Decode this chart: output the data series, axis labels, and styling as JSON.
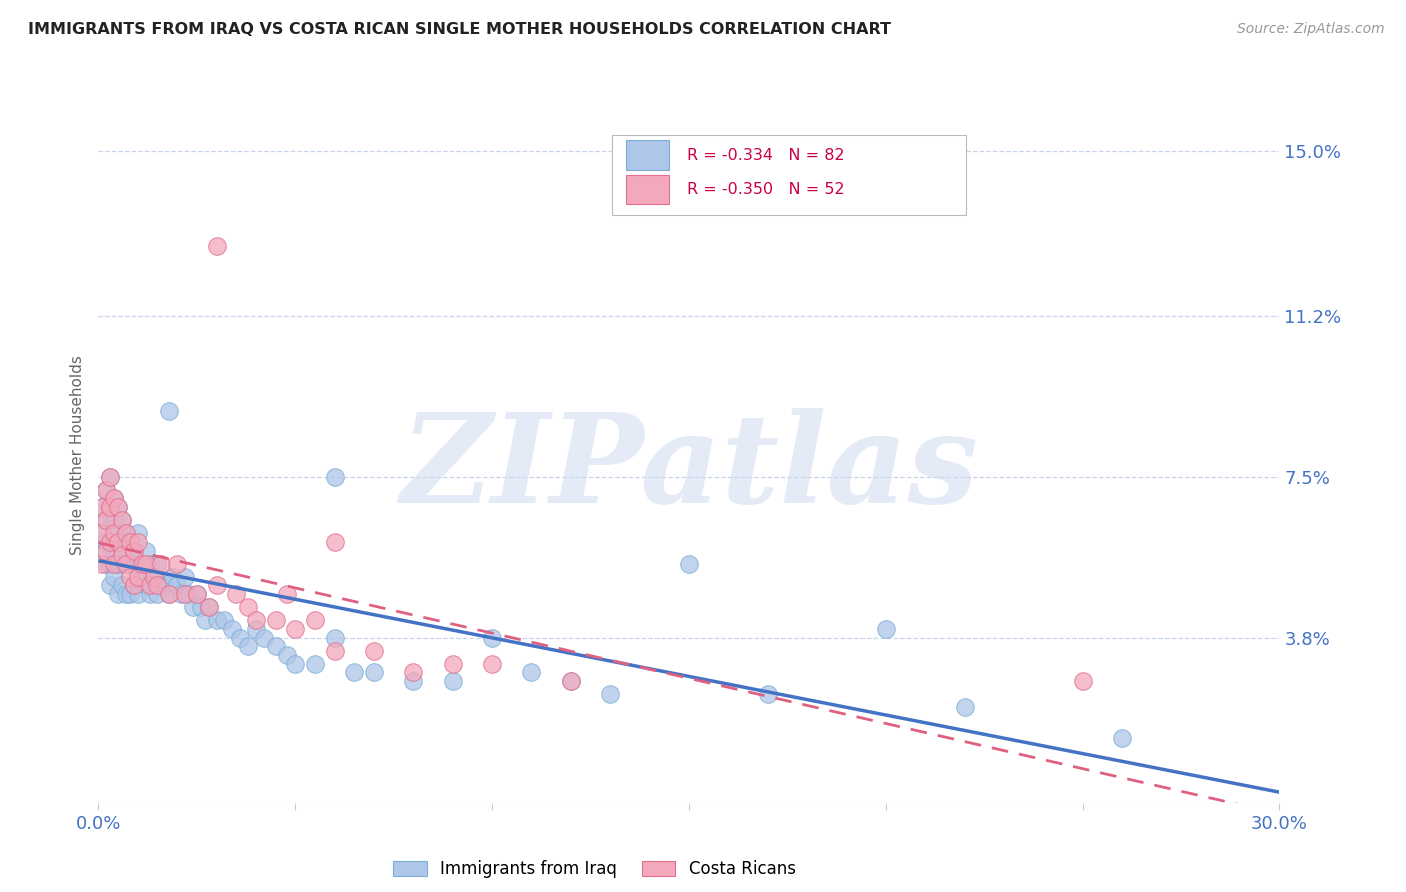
{
  "title": "IMMIGRANTS FROM IRAQ VS COSTA RICAN SINGLE MOTHER HOUSEHOLDS CORRELATION CHART",
  "source": "Source: ZipAtlas.com",
  "ylabel": "Single Mother Households",
  "xlim": [
    0.0,
    0.3
  ],
  "ylim": [
    0.0,
    0.16
  ],
  "ytick_vals": [
    0.038,
    0.075,
    0.112,
    0.15
  ],
  "ytick_labels": [
    "3.8%",
    "7.5%",
    "11.2%",
    "15.0%"
  ],
  "xtick_vals": [
    0.0,
    0.05,
    0.1,
    0.15,
    0.2,
    0.25,
    0.3
  ],
  "xtick_labels": [
    "0.0%",
    "",
    "",
    "",
    "",
    "",
    "30.0%"
  ],
  "legend_iraq_r": "R = -0.334",
  "legend_iraq_n": "N = 82",
  "legend_cr_r": "R = -0.350",
  "legend_cr_n": "N = 52",
  "color_iraq_fill": "#aec6e8",
  "color_iraq_edge": "#7badd4",
  "color_cr_fill": "#f4a8bb",
  "color_cr_edge": "#e07090",
  "color_iraq_line": "#4472c4",
  "color_cr_line": "#e06080",
  "color_axis_labels": "#4472c4",
  "watermark_color": "#ccd8ee",
  "grid_color": "#c8d4e8",
  "iraq_x": [
    0.001,
    0.001,
    0.001,
    0.002,
    0.002,
    0.002,
    0.002,
    0.003,
    0.003,
    0.003,
    0.003,
    0.003,
    0.004,
    0.004,
    0.004,
    0.004,
    0.005,
    0.005,
    0.005,
    0.005,
    0.006,
    0.006,
    0.006,
    0.007,
    0.007,
    0.007,
    0.008,
    0.008,
    0.008,
    0.009,
    0.009,
    0.01,
    0.01,
    0.01,
    0.011,
    0.012,
    0.012,
    0.013,
    0.013,
    0.014,
    0.015,
    0.015,
    0.016,
    0.017,
    0.018,
    0.019,
    0.02,
    0.021,
    0.022,
    0.023,
    0.024,
    0.025,
    0.026,
    0.027,
    0.028,
    0.03,
    0.032,
    0.034,
    0.036,
    0.038,
    0.04,
    0.042,
    0.045,
    0.048,
    0.05,
    0.055,
    0.06,
    0.065,
    0.07,
    0.08,
    0.09,
    0.1,
    0.11,
    0.12,
    0.13,
    0.15,
    0.17,
    0.2,
    0.22,
    0.26,
    0.018,
    0.06
  ],
  "iraq_y": [
    0.068,
    0.062,
    0.058,
    0.072,
    0.065,
    0.06,
    0.055,
    0.075,
    0.068,
    0.06,
    0.055,
    0.05,
    0.07,
    0.065,
    0.058,
    0.052,
    0.068,
    0.062,
    0.055,
    0.048,
    0.065,
    0.058,
    0.05,
    0.062,
    0.055,
    0.048,
    0.06,
    0.055,
    0.048,
    0.058,
    0.05,
    0.062,
    0.055,
    0.048,
    0.052,
    0.058,
    0.05,
    0.055,
    0.048,
    0.052,
    0.055,
    0.048,
    0.05,
    0.05,
    0.048,
    0.052,
    0.05,
    0.048,
    0.052,
    0.048,
    0.045,
    0.048,
    0.045,
    0.042,
    0.045,
    0.042,
    0.042,
    0.04,
    0.038,
    0.036,
    0.04,
    0.038,
    0.036,
    0.034,
    0.032,
    0.032,
    0.038,
    0.03,
    0.03,
    0.028,
    0.028,
    0.038,
    0.03,
    0.028,
    0.025,
    0.055,
    0.025,
    0.04,
    0.022,
    0.015,
    0.09,
    0.075
  ],
  "cr_x": [
    0.001,
    0.001,
    0.001,
    0.002,
    0.002,
    0.002,
    0.003,
    0.003,
    0.003,
    0.004,
    0.004,
    0.004,
    0.005,
    0.005,
    0.006,
    0.006,
    0.007,
    0.007,
    0.008,
    0.008,
    0.009,
    0.009,
    0.01,
    0.01,
    0.011,
    0.012,
    0.013,
    0.014,
    0.015,
    0.016,
    0.018,
    0.02,
    0.022,
    0.025,
    0.028,
    0.03,
    0.035,
    0.038,
    0.04,
    0.045,
    0.048,
    0.05,
    0.055,
    0.06,
    0.07,
    0.08,
    0.09,
    0.1,
    0.12,
    0.25,
    0.03,
    0.06
  ],
  "cr_y": [
    0.068,
    0.062,
    0.055,
    0.072,
    0.065,
    0.058,
    0.075,
    0.068,
    0.06,
    0.07,
    0.062,
    0.055,
    0.068,
    0.06,
    0.065,
    0.057,
    0.062,
    0.055,
    0.06,
    0.052,
    0.058,
    0.05,
    0.06,
    0.052,
    0.055,
    0.055,
    0.05,
    0.052,
    0.05,
    0.055,
    0.048,
    0.055,
    0.048,
    0.048,
    0.045,
    0.05,
    0.048,
    0.045,
    0.042,
    0.042,
    0.048,
    0.04,
    0.042,
    0.035,
    0.035,
    0.03,
    0.032,
    0.032,
    0.028,
    0.028,
    0.128,
    0.06
  ]
}
